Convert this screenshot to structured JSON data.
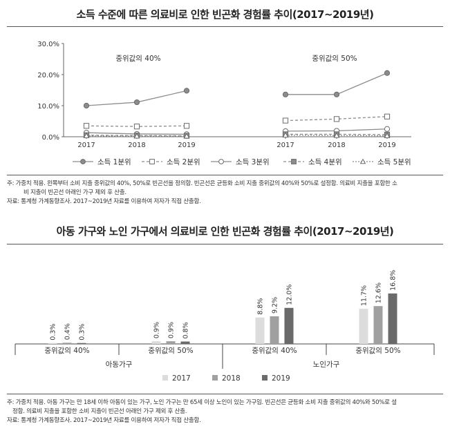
{
  "chart1": {
    "title": "소득 수준에 따른 의료비로 인한 빈곤화 경험률 추이(2017~2019년)",
    "panel_labels": [
      "중위값의 40%",
      "중위값의 50%"
    ],
    "years": [
      "2017",
      "2018",
      "2019"
    ],
    "y_ticks": [
      "0.0%",
      "10.0%",
      "20.0%",
      "30.0%"
    ],
    "legend": [
      "소득 1분위",
      "소득 2분위",
      "소득 3분위",
      "소득 4분위",
      "소득 5분위"
    ],
    "notes": [
      "주: 가중치 적용. 왼쪽부터 소비 지출 중위값의 40%, 50%로 빈곤선을 정의함. 빈곤선은 균등화 소비 지출 중위값의 40%와 50%로 설정함. 의료비 지출을 포함한 소",
      "비 지출이 빈곤선 아래인 가구 제외 후 산출.",
      "자료: 통계청 가계동향조사. 2017~2019년 자료를 이용하여 저자가 직접 산출함."
    ]
  },
  "chart2": {
    "title": "아동 가구와 노인 가구에서 의료비로 인한 빈곤화 경험률 추이(2017~2019년)",
    "groups": [
      "중위값의 40%",
      "중위값의 50%",
      "중위값의 40%",
      "중위값의 50%"
    ],
    "household_labels": [
      "아동가구",
      "노인가구"
    ],
    "legend": [
      "2017",
      "2018",
      "2019"
    ],
    "notes": [
      "주: 가중치 적용. 아동 가구는 만 18세 이하 아동이 있는 가구, 노인 가구는 만 65세 이상 노인이 있는 가구임. 빈곤선은 균등화 소비 지출 중위값의 40%와 50%로 설",
      "정함. 의료비 지출을 포함한 소비 지출이 빈곤선 아래인 가구 제외 후 산출.",
      "자료: 통계청 가계동향조사. 2017~2019년 자료를 이용하여 저자가 직접 산출함."
    ]
  },
  "chart_data": [
    {
      "type": "line",
      "title": "소득 수준에 따른 의료비로 인한 빈곤화 경험률 추이(2017~2019년)",
      "x": [
        "2017",
        "2018",
        "2019"
      ],
      "ylim": [
        0,
        30
      ],
      "grid": false,
      "legend_position": "bottom",
      "panels": [
        {
          "label": "중위값의 40%",
          "series": [
            {
              "name": "소득 1분위",
              "values": [
                10.0,
                11.1,
                14.8
              ]
            },
            {
              "name": "소득 2분위",
              "values": [
                3.5,
                3.3,
                3.5
              ]
            },
            {
              "name": "소득 3분위",
              "values": [
                1.3,
                0.9,
                0.8
              ]
            },
            {
              "name": "소득 4분위",
              "values": [
                0.5,
                0.4,
                0.3
              ]
            },
            {
              "name": "소득 5분위",
              "values": [
                0.3,
                0.2,
                0.2
              ]
            }
          ]
        },
        {
          "label": "중위값의 50%",
          "series": [
            {
              "name": "소득 1분위",
              "values": [
                13.6,
                13.6,
                20.5
              ]
            },
            {
              "name": "소득 2분위",
              "values": [
                5.2,
                5.7,
                6.5
              ]
            },
            {
              "name": "소득 3분위",
              "values": [
                1.8,
                1.9,
                2.5
              ]
            },
            {
              "name": "소득 4분위",
              "values": [
                0.8,
                0.8,
                0.7
              ]
            },
            {
              "name": "소득 5분위",
              "values": [
                0.5,
                0.4,
                0.3
              ]
            }
          ]
        }
      ]
    },
    {
      "type": "bar",
      "title": "아동 가구와 노인 가구에서 의료비로 인한 빈곤화 경험률 추이(2017~2019년)",
      "categories": [
        "중위값의 40%",
        "중위값의 50%",
        "중위값의 40%",
        "중위값의 50%"
      ],
      "groups": [
        "아동가구",
        "아동가구",
        "노인가구",
        "노인가구"
      ],
      "legend_position": "bottom",
      "series": [
        {
          "name": "2017",
          "values": [
            0.3,
            0.9,
            8.8,
            11.7
          ],
          "labels": [
            "0.3%",
            "0.9%",
            "8.8%",
            "11.7%"
          ]
        },
        {
          "name": "2018",
          "values": [
            0.4,
            0.9,
            9.2,
            12.6
          ],
          "labels": [
            "0.4%",
            "0.9%",
            "9.2%",
            "12.6%"
          ]
        },
        {
          "name": "2019",
          "values": [
            0.3,
            0.8,
            12.0,
            16.8
          ],
          "labels": [
            "0.3%",
            "0.8%",
            "12.0%",
            "16.8%"
          ]
        }
      ],
      "colors": [
        "#dcdcdc",
        "#a0a0a0",
        "#6a6a6a"
      ]
    }
  ]
}
